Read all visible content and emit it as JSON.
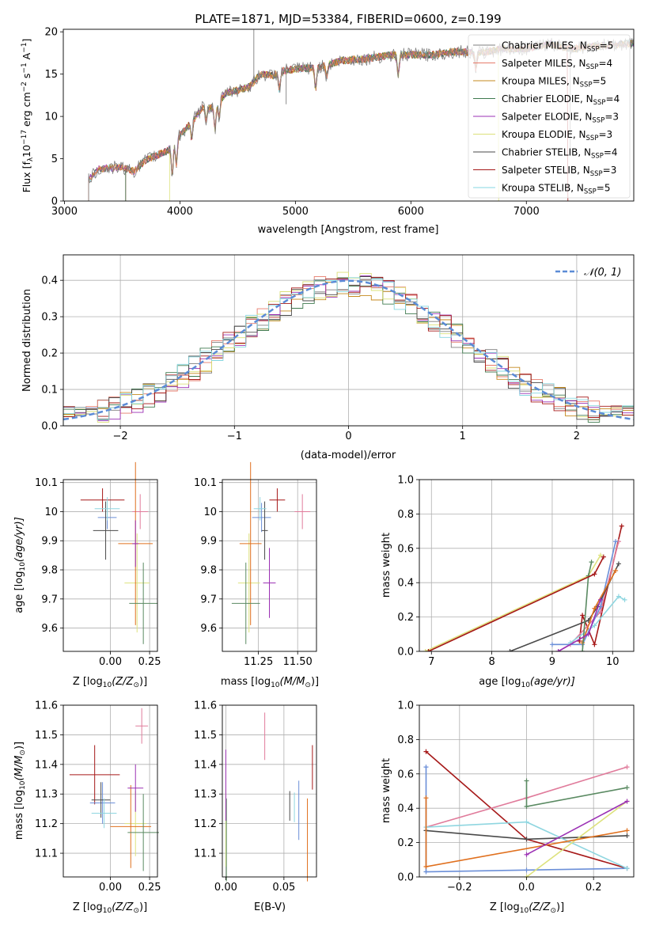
{
  "figure": {
    "title": "PLATE=1871, MJD=53384, FIBERID=0600, z=0.199"
  },
  "colors": {
    "axis": "#000000",
    "grid": "#b0b0b0",
    "gaussian": "#5b8bd6",
    "series": [
      "#7f7f7f",
      "#e67b6b",
      "#c58a1e",
      "#3f7a4f",
      "#9b30b4",
      "#dbe07a",
      "#4a4a4a",
      "#a61919",
      "#86d7e0"
    ],
    "points": [
      "#a61919",
      "#e07b9b",
      "#6b8fd8",
      "#4a4a4a",
      "#8fd6e0",
      "#dde27d",
      "#e0701e",
      "#5a8a62",
      "#9b30b4"
    ]
  },
  "legend_labels": [
    "Chabrier MILES, N",
    "Salpeter MILES, N",
    "Kroupa MILES, N",
    "Chabrier ELODIE, N",
    "Salpeter ELODIE, N",
    "Kroupa ELODIE, N",
    "Chabrier STELIB, N",
    "Salpeter STELIB, N",
    "Kroupa STELIB, N"
  ],
  "legend_sub": "SSP",
  "legend_counts": [
    "=5",
    "=4",
    "=5",
    "=4",
    "=3",
    "=3",
    "=4",
    "=3",
    "=5"
  ],
  "chart_data": [
    {
      "id": "spectrum",
      "type": "line",
      "xlabel": "wavelength [Angstrom, rest frame]",
      "ylabel_main": "Flux [f",
      "ylabel_sub": "λ",
      "ylabel_mid": "10",
      "ylabel_sup": "−17",
      "ylabel_tail": " erg cm",
      "ylabel_sup2": "−2",
      "ylabel_tail2": " s",
      "ylabel_sup3": "−1",
      "ylabel_tail3": " A",
      "ylabel_sup4": "−1",
      "ylabel_end": "]",
      "xlim": [
        2990,
        7930
      ],
      "ylim": [
        0,
        20.3
      ],
      "xticks": [
        3000,
        4000,
        5000,
        6000,
        7000
      ],
      "yticks": [
        0,
        5,
        10,
        15,
        20
      ],
      "observed_continuum": [
        [
          3200,
          0
        ],
        [
          3210,
          2.5
        ],
        [
          3300,
          3.8
        ],
        [
          3500,
          4.0
        ],
        [
          3600,
          3.5
        ],
        [
          3700,
          4.8
        ],
        [
          3900,
          6.0
        ],
        [
          4000,
          7.8
        ],
        [
          4100,
          9.3
        ],
        [
          4200,
          11.1
        ],
        [
          4300,
          11.0
        ],
        [
          4400,
          12.8
        ],
        [
          4500,
          13.1
        ],
        [
          4600,
          13.5
        ],
        [
          4700,
          15.0
        ],
        [
          4800,
          14.8
        ],
        [
          4900,
          15.4
        ],
        [
          5000,
          15.6
        ],
        [
          5200,
          15.8
        ],
        [
          5400,
          16.6
        ],
        [
          5600,
          16.8
        ],
        [
          5800,
          17.2
        ],
        [
          6000,
          17.3
        ],
        [
          6200,
          17.3
        ],
        [
          6400,
          17.7
        ],
        [
          6600,
          17.5
        ],
        [
          6800,
          18.0
        ],
        [
          7000,
          18.0
        ],
        [
          7200,
          18.6
        ],
        [
          7400,
          18.0
        ],
        [
          7600,
          18.3
        ],
        [
          7900,
          18.6
        ]
      ],
      "model_start": [
        3210,
        3210,
        3210,
        3530,
        3210,
        3910,
        3210,
        3530,
        3210
      ],
      "model_end": [
        7930,
        7930,
        7930,
        7930,
        7930,
        6760,
        7930,
        7360,
        7930
      ],
      "absorption_lines": [
        [
          3934,
          3.5
        ],
        [
          3969,
          3.0
        ],
        [
          4102,
          2.0
        ],
        [
          4227,
          1.5
        ],
        [
          4304,
          2.5
        ],
        [
          4340,
          2.0
        ],
        [
          4861,
          2.0
        ],
        [
          5175,
          2.5
        ],
        [
          5270,
          1.5
        ],
        [
          5890,
          2.5
        ],
        [
          6563,
          2.0
        ]
      ],
      "spikes": [
        [
          4640,
          8.5
        ],
        [
          4920,
          -4.0
        ],
        [
          7380,
          -12.0
        ]
      ]
    },
    {
      "id": "residuals",
      "type": "histogram",
      "xlabel": "(data-model)/error",
      "ylabel": "Normed distribution",
      "legend": "𝒩(0, 1)",
      "xlim": [
        -2.5,
        2.5
      ],
      "ylim": [
        0,
        0.47
      ],
      "xticks": [
        -2,
        -1,
        0,
        1,
        2
      ],
      "xtick_labels": [
        "−2",
        "−1",
        "0",
        "1",
        "2"
      ],
      "yticks": [
        0,
        0.1,
        0.2,
        0.3,
        0.4
      ],
      "ytick_labels": [
        "0.0",
        "0.1",
        "0.2",
        "0.3",
        "0.4"
      ],
      "bin_width": 0.1
    },
    {
      "id": "age-vs-z",
      "type": "scatter",
      "xlabel": "Z [log",
      "xlabel_sub": "10",
      "xlabel_tail": "(Z/Z",
      "xlabel_sub2": "⊙",
      "xlabel_end": ")]",
      "ylabel": "age  [log",
      "ylabel_sub": "10",
      "ylabel_tail": "(age/yr)]",
      "xlim": [
        -0.3,
        0.3
      ],
      "ylim": [
        9.52,
        10.11
      ],
      "xticks": [
        0.0,
        0.25
      ],
      "xtick_labels": [
        "0.00",
        "0.25"
      ],
      "yticks": [
        9.6,
        9.7,
        9.8,
        9.9,
        10.0,
        10.1
      ],
      "points": [
        {
          "x": -0.05,
          "y": 10.04,
          "xerr": 0.14,
          "yerr": 0.04
        },
        {
          "x": 0.19,
          "y": 10.0,
          "xerr": 0.05,
          "yerr": 0.06
        },
        {
          "x": -0.02,
          "y": 9.98,
          "xerr": 0.06,
          "yerr": 0.04
        },
        {
          "x": -0.03,
          "y": 9.935,
          "xerr": 0.08,
          "yerr": 0.1
        },
        {
          "x": -0.02,
          "y": 10.01,
          "xerr": 0.08,
          "yerr": 0.04
        },
        {
          "x": 0.17,
          "y": 9.755,
          "xerr": 0.08,
          "yerr": 0.17
        },
        {
          "x": 0.16,
          "y": 9.89,
          "xerr": 0.11,
          "yerr": 0.28
        },
        {
          "x": 0.21,
          "y": 9.685,
          "xerr": 0.09,
          "yerr": 0.14
        },
        {
          "x": 0.16,
          "y": 9.89,
          "xerr": 0.02,
          "yerr": 0.08
        }
      ]
    },
    {
      "id": "age-vs-mass",
      "type": "scatter",
      "xlabel": "mass [log",
      "xlabel_sub": "10",
      "xlabel_tail": "(M/M",
      "xlabel_sub2": "⊙",
      "xlabel_end": ")]",
      "xlim": [
        11.02,
        11.62
      ],
      "ylim": [
        9.52,
        10.11
      ],
      "xticks": [
        11.25,
        11.5
      ],
      "xtick_labels": [
        "11.25",
        "11.50"
      ],
      "yticks": [
        9.6,
        9.7,
        9.8,
        9.9,
        10.0,
        10.1
      ],
      "points": [
        {
          "x": 11.37,
          "y": 10.04,
          "xerr": 0.05,
          "yerr": 0.04
        },
        {
          "x": 11.53,
          "y": 10.0,
          "xerr": 0.05,
          "yerr": 0.06
        },
        {
          "x": 11.27,
          "y": 9.98,
          "xerr": 0.06,
          "yerr": 0.05
        },
        {
          "x": 11.29,
          "y": 9.935,
          "xerr": 0.02,
          "yerr": 0.1
        },
        {
          "x": 11.26,
          "y": 10.01,
          "xerr": 0.04,
          "yerr": 0.04
        },
        {
          "x": 11.19,
          "y": 9.755,
          "xerr": 0.07,
          "yerr": 0.17
        },
        {
          "x": 11.2,
          "y": 9.89,
          "xerr": 0.07,
          "yerr": 0.28
        },
        {
          "x": 11.17,
          "y": 9.685,
          "xerr": 0.09,
          "yerr": 0.14
        },
        {
          "x": 11.32,
          "y": 9.755,
          "xerr": 0.04,
          "yerr": 0.12
        }
      ]
    },
    {
      "id": "mass-weight-vs-age",
      "type": "line",
      "xlabel": "age  [log",
      "xlabel_sub": "10",
      "xlabel_tail": "(age/yr)]",
      "ylabel": "mass weight",
      "xlim": [
        6.8,
        10.35
      ],
      "ylim": [
        0,
        1.0
      ],
      "xticks": [
        7,
        8,
        9,
        10
      ],
      "yticks": [
        0,
        0.2,
        0.4,
        0.6,
        0.8,
        1.0
      ],
      "ytick_labels": [
        "0.0",
        "0.2",
        "0.4",
        "0.6",
        "0.8",
        "1.0"
      ],
      "series": [
        {
          "points": [
            [
              9.45,
              0.06
            ],
            [
              9.5,
              0.21
            ],
            [
              9.7,
              0.04
            ],
            [
              10.15,
              0.73
            ]
          ]
        },
        {
          "points": [
            [
              9.1,
              0.0
            ],
            [
              9.3,
              0.04
            ],
            [
              9.8,
              0.23
            ],
            [
              10.1,
              0.64
            ]
          ]
        },
        {
          "points": [
            [
              9.0,
              0.04
            ],
            [
              9.5,
              0.04
            ],
            [
              9.8,
              0.26
            ],
            [
              10.05,
              0.64
            ]
          ]
        },
        {
          "points": [
            [
              8.3,
              0.0
            ],
            [
              9.6,
              0.18
            ],
            [
              9.75,
              0.26
            ],
            [
              10.1,
              0.51
            ]
          ]
        },
        {
          "points": [
            [
              9.3,
              0.05
            ],
            [
              9.7,
              0.15
            ],
            [
              10.1,
              0.32
            ],
            [
              10.2,
              0.3
            ]
          ]
        },
        {
          "points": [
            [
              6.9,
              0.0
            ],
            [
              9.6,
              0.44
            ],
            [
              9.8,
              0.56
            ]
          ]
        },
        {
          "points": [
            [
              9.5,
              0.05
            ],
            [
              9.7,
              0.25
            ],
            [
              10.05,
              0.47
            ]
          ]
        },
        {
          "points": [
            [
              9.5,
              0.0
            ],
            [
              9.6,
              0.44
            ],
            [
              9.65,
              0.52
            ]
          ]
        },
        {
          "points": [
            [
              9.1,
              0.0
            ],
            [
              9.6,
              0.1
            ],
            [
              9.8,
              0.3
            ]
          ]
        },
        {
          "points": [
            [
              6.95,
              0.0
            ],
            [
              9.7,
              0.45
            ],
            [
              9.85,
              0.55
            ]
          ]
        }
      ]
    },
    {
      "id": "mass-vs-z",
      "type": "scatter",
      "xlabel": "Z [log",
      "xlabel_sub": "10",
      "xlabel_tail": "(Z/Z",
      "xlabel_sub2": "⊙",
      "xlabel_end": ")]",
      "ylabel": "mass [log",
      "ylabel_sub": "10",
      "ylabel_tail": "(M/M",
      "ylabel_sub2": "⊙",
      "ylabel_end": ")]",
      "xlim": [
        -0.3,
        0.3
      ],
      "ylim": [
        11.02,
        11.6
      ],
      "xticks": [
        0.0,
        0.25
      ],
      "xtick_labels": [
        "0.00",
        "0.25"
      ],
      "yticks": [
        11.1,
        11.2,
        11.3,
        11.4,
        11.5,
        11.6
      ],
      "points": [
        {
          "x": -0.1,
          "y": 11.365,
          "xerr": 0.16,
          "yerr": 0.1
        },
        {
          "x": 0.2,
          "y": 11.53,
          "xerr": 0.04,
          "yerr": 0.06
        },
        {
          "x": -0.05,
          "y": 11.27,
          "xerr": 0.08,
          "yerr": 0.07
        },
        {
          "x": -0.06,
          "y": 11.28,
          "xerr": 0.06,
          "yerr": 0.06
        },
        {
          "x": -0.04,
          "y": 11.235,
          "xerr": 0.08,
          "yerr": 0.05
        },
        {
          "x": 0.16,
          "y": 11.2,
          "xerr": 0.07,
          "yerr": 0.11
        },
        {
          "x": 0.13,
          "y": 11.19,
          "xerr": 0.13,
          "yerr": 0.14
        },
        {
          "x": 0.21,
          "y": 11.17,
          "xerr": 0.1,
          "yerr": 0.13
        },
        {
          "x": 0.16,
          "y": 11.32,
          "xerr": 0.05,
          "yerr": 0.08
        }
      ]
    },
    {
      "id": "mass-vs-ebv",
      "type": "scatter",
      "xlabel": "E(B-V)",
      "xlim": [
        -0.003,
        0.078
      ],
      "ylim": [
        11.02,
        11.6
      ],
      "xticks": [
        0.0,
        0.05
      ],
      "xtick_labels": [
        "0.00",
        "0.05"
      ],
      "yticks": [
        11.1,
        11.2,
        11.3,
        11.4,
        11.5,
        11.6
      ],
      "points": [
        {
          "x": 0.0745,
          "y": 11.39,
          "xerr": 0,
          "yerr": 0.075
        },
        {
          "x": 0.0335,
          "y": 11.495,
          "xerr": 0,
          "yerr": 0.08
        },
        {
          "x": 0.0628,
          "y": 11.245,
          "xerr": 0,
          "yerr": 0.1
        },
        {
          "x": 0.055,
          "y": 11.26,
          "xerr": 0,
          "yerr": 0.05
        },
        {
          "x": 0.059,
          "y": 11.255,
          "xerr": 0,
          "yerr": 0.05
        },
        {
          "x": 0.0,
          "y": 11.185,
          "xerr": 0,
          "yerr": 0.13
        },
        {
          "x": 0.0702,
          "y": 11.145,
          "xerr": 0,
          "yerr": 0.14
        },
        {
          "x": 0.0005,
          "y": 11.145,
          "xerr": 0,
          "yerr": 0.14
        },
        {
          "x": 0.0,
          "y": 11.33,
          "xerr": 0,
          "yerr": 0.12
        }
      ]
    },
    {
      "id": "mass-weight-vs-z",
      "type": "line",
      "xlabel": "Z [log",
      "xlabel_sub": "10",
      "xlabel_tail": "(Z/Z",
      "xlabel_sub2": "⊙",
      "xlabel_end": ")]",
      "ylabel": "mass weight",
      "xlim": [
        -0.32,
        0.32
      ],
      "ylim": [
        0,
        1.0
      ],
      "xticks": [
        -0.2,
        0.0,
        0.2
      ],
      "xtick_labels": [
        "−0.2",
        "0.0",
        "0.2"
      ],
      "yticks": [
        0,
        0.2,
        0.4,
        0.6,
        0.8,
        1.0
      ],
      "ytick_labels": [
        "0.0",
        "0.2",
        "0.4",
        "0.6",
        "0.8",
        "1.0"
      ],
      "series": [
        {
          "points": [
            [
              -0.3,
              0.73
            ],
            [
              0.0,
              0.22
            ],
            [
              0.3,
              0.05
            ]
          ]
        },
        {
          "points": [
            [
              -0.3,
              0.29
            ],
            [
              0.0,
              0.46
            ],
            [
              0.3,
              0.64
            ]
          ]
        },
        {
          "points": [
            [
              -0.3,
              0.64
            ],
            [
              -0.3,
              0.03
            ],
            [
              0.0,
              0.04
            ],
            [
              0.3,
              0.05
            ]
          ]
        },
        {
          "points": [
            [
              -0.3,
              0.27
            ],
            [
              0.0,
              0.22
            ],
            [
              0.3,
              0.24
            ]
          ]
        },
        {
          "points": [
            [
              -0.3,
              0.29
            ],
            [
              0.0,
              0.32
            ],
            [
              0.3,
              0.05
            ]
          ]
        },
        {
          "points": [
            [
              0.0,
              0.0
            ],
            [
              0.3,
              0.44
            ]
          ]
        },
        {
          "points": [
            [
              -0.3,
              0.46
            ],
            [
              -0.3,
              0.06
            ],
            [
              0.3,
              0.27
            ]
          ]
        },
        {
          "points": [
            [
              0.0,
              0.56
            ],
            [
              0.0,
              0.41
            ],
            [
              0.3,
              0.52
            ]
          ]
        },
        {
          "points": [
            [
              0.0,
              0.13
            ],
            [
              0.3,
              0.44
            ]
          ]
        }
      ]
    }
  ]
}
